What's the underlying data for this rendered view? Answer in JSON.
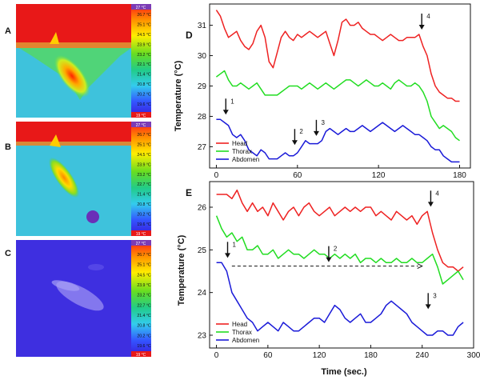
{
  "colors": {
    "head": "#ee2222",
    "thorax": "#22dd22",
    "abdomen": "#1a1ad8"
  },
  "thermal_panels": [
    {
      "label": "A",
      "scale_top": "27 °C",
      "scale_bottom": "19 °C",
      "ticks": [
        "26.7 °C",
        "25.1 °C",
        "24.5 °C",
        "23.9 °C",
        "23.2 °C",
        "22.1 °C",
        "21.4 °C",
        "20.8 °C",
        "20.2 °C",
        "19.6 °C"
      ]
    },
    {
      "label": "B",
      "scale_top": "27 °C",
      "scale_bottom": "19 °C",
      "ticks": [
        "26.7 °C",
        "25.1 °C",
        "24.5 °C",
        "23.9 °C",
        "23.2 °C",
        "22.7 °C",
        "21.4 °C",
        "20.8 °C",
        "20.2 °C",
        "19.6 °C"
      ]
    },
    {
      "label": "C",
      "scale_top": "27 °C",
      "scale_bottom": "19 °C",
      "ticks": [
        "26.7 °C",
        "25.1 °C",
        "24.5 °C",
        "23.9 °C",
        "23.2 °C",
        "22.7 °C",
        "21.4 °C",
        "20.8 °C",
        "20.2 °C",
        "19.6 °C"
      ]
    }
  ],
  "chart_data": [
    {
      "type": "line",
      "panel_label": "D",
      "title": "",
      "xlabel": "",
      "ylabel": "Temperature (°C)",
      "xlim": [
        -5,
        188
      ],
      "ylim": [
        26.3,
        31.7
      ],
      "xticks": [
        0,
        60,
        120,
        180
      ],
      "yticks": [
        27,
        28,
        29,
        30,
        31
      ],
      "legend": [
        "Head",
        "Thorax",
        "Abdomen"
      ],
      "series": [
        {
          "name": "Head",
          "x": [
            0,
            3,
            6,
            9,
            12,
            15,
            18,
            21,
            24,
            27,
            30,
            33,
            36,
            39,
            42,
            45,
            48,
            51,
            54,
            57,
            60,
            63,
            66,
            69,
            72,
            75,
            78,
            81,
            84,
            87,
            90,
            93,
            96,
            99,
            102,
            105,
            108,
            111,
            114,
            117,
            120,
            123,
            126,
            129,
            132,
            135,
            138,
            141,
            144,
            147,
            150,
            153,
            156,
            159,
            162,
            165,
            168,
            171,
            174,
            177,
            180
          ],
          "values": [
            31.5,
            31.3,
            30.9,
            30.6,
            30.7,
            30.8,
            30.5,
            30.3,
            30.2,
            30.4,
            30.8,
            31.0,
            30.6,
            29.8,
            29.6,
            30.1,
            30.6,
            30.8,
            30.6,
            30.5,
            30.7,
            30.6,
            30.7,
            30.8,
            30.7,
            30.6,
            30.7,
            30.8,
            30.4,
            30.0,
            30.5,
            31.1,
            31.2,
            31.0,
            31.0,
            31.1,
            30.9,
            30.8,
            30.7,
            30.7,
            30.6,
            30.5,
            30.6,
            30.7,
            30.6,
            30.5,
            30.5,
            30.6,
            30.6,
            30.6,
            30.7,
            30.3,
            30.0,
            29.4,
            29.0,
            28.8,
            28.7,
            28.6,
            28.6,
            28.5,
            28.5
          ]
        },
        {
          "name": "Thorax",
          "x": [
            0,
            3,
            6,
            9,
            12,
            15,
            18,
            21,
            24,
            27,
            30,
            33,
            36,
            39,
            42,
            45,
            48,
            51,
            54,
            57,
            60,
            63,
            66,
            69,
            72,
            75,
            78,
            81,
            84,
            87,
            90,
            93,
            96,
            99,
            102,
            105,
            108,
            111,
            114,
            117,
            120,
            123,
            126,
            129,
            132,
            135,
            138,
            141,
            144,
            147,
            150,
            153,
            156,
            159,
            162,
            165,
            168,
            171,
            174,
            177,
            180
          ],
          "values": [
            29.3,
            29.4,
            29.5,
            29.2,
            29.0,
            29.0,
            29.1,
            29.0,
            28.9,
            29.0,
            29.1,
            28.9,
            28.7,
            28.7,
            28.7,
            28.7,
            28.8,
            28.9,
            29.0,
            29.0,
            29.0,
            28.9,
            29.0,
            29.1,
            29.0,
            28.9,
            29.0,
            29.1,
            29.0,
            28.9,
            29.0,
            29.1,
            29.2,
            29.2,
            29.1,
            29.0,
            29.1,
            29.2,
            29.1,
            29.0,
            29.0,
            29.1,
            29.0,
            28.9,
            29.1,
            29.2,
            29.1,
            29.0,
            29.0,
            29.1,
            29.0,
            28.8,
            28.5,
            28.0,
            27.8,
            27.6,
            27.7,
            27.6,
            27.5,
            27.3,
            27.2
          ]
        },
        {
          "name": "Abdomen",
          "x": [
            0,
            3,
            6,
            9,
            12,
            15,
            18,
            21,
            24,
            27,
            30,
            33,
            36,
            39,
            42,
            45,
            48,
            51,
            54,
            57,
            60,
            63,
            66,
            69,
            72,
            75,
            78,
            81,
            84,
            87,
            90,
            93,
            96,
            99,
            102,
            105,
            108,
            111,
            114,
            117,
            120,
            123,
            126,
            129,
            132,
            135,
            138,
            141,
            144,
            147,
            150,
            153,
            156,
            159,
            162,
            165,
            168,
            171,
            174,
            177,
            180
          ],
          "values": [
            27.9,
            27.9,
            27.8,
            27.7,
            27.4,
            27.3,
            27.4,
            27.2,
            26.9,
            26.8,
            26.7,
            26.9,
            26.8,
            26.6,
            26.6,
            26.6,
            26.7,
            26.8,
            26.7,
            26.7,
            26.8,
            27.0,
            27.2,
            27.1,
            27.1,
            27.1,
            27.2,
            27.5,
            27.6,
            27.5,
            27.4,
            27.5,
            27.6,
            27.5,
            27.5,
            27.6,
            27.7,
            27.6,
            27.5,
            27.6,
            27.7,
            27.8,
            27.7,
            27.6,
            27.5,
            27.6,
            27.7,
            27.6,
            27.5,
            27.4,
            27.4,
            27.3,
            27.2,
            27.0,
            26.9,
            26.9,
            26.7,
            26.6,
            26.5,
            26.5,
            26.5
          ]
        }
      ],
      "annotations": [
        {
          "text": "1",
          "x": 7,
          "y": 27.9
        },
        {
          "text": "2",
          "x": 58,
          "y": 26.9
        },
        {
          "text": "3",
          "x": 74,
          "y": 27.2
        },
        {
          "text": "4",
          "x": 152,
          "y": 30.7
        }
      ]
    },
    {
      "type": "line",
      "panel_label": "E",
      "title": "",
      "xlabel": "Time (sec.)",
      "ylabel": "Temperature (°C)",
      "xlim": [
        -8,
        300
      ],
      "ylim": [
        22.7,
        26.6
      ],
      "xticks": [
        0,
        60,
        120,
        180,
        240,
        300
      ],
      "yticks": [
        23,
        24,
        25,
        26
      ],
      "legend": [
        "Head",
        "Thorax",
        "Abdomen"
      ],
      "series": [
        {
          "name": "Head",
          "x": [
            0,
            6,
            12,
            18,
            24,
            30,
            36,
            42,
            48,
            54,
            60,
            66,
            72,
            78,
            84,
            90,
            96,
            102,
            108,
            114,
            120,
            126,
            132,
            138,
            144,
            150,
            156,
            162,
            168,
            174,
            180,
            186,
            192,
            198,
            204,
            210,
            216,
            222,
            228,
            234,
            240,
            246,
            252,
            258,
            264,
            270,
            276,
            282,
            288
          ],
          "values": [
            26.3,
            26.3,
            26.3,
            26.2,
            26.4,
            26.1,
            25.9,
            26.1,
            25.9,
            26.0,
            25.8,
            26.1,
            25.9,
            25.7,
            25.9,
            26.0,
            25.8,
            26.0,
            26.1,
            25.9,
            25.8,
            25.9,
            26.0,
            25.8,
            25.9,
            26.0,
            25.9,
            26.0,
            25.9,
            26.0,
            26.0,
            25.8,
            25.9,
            25.8,
            25.7,
            25.9,
            25.8,
            25.7,
            25.8,
            25.6,
            25.8,
            25.9,
            25.4,
            25.0,
            24.7,
            24.6,
            24.6,
            24.5,
            24.6
          ]
        },
        {
          "name": "Thorax",
          "x": [
            0,
            6,
            12,
            18,
            24,
            30,
            36,
            42,
            48,
            54,
            60,
            66,
            72,
            78,
            84,
            90,
            96,
            102,
            108,
            114,
            120,
            126,
            132,
            138,
            144,
            150,
            156,
            162,
            168,
            174,
            180,
            186,
            192,
            198,
            204,
            210,
            216,
            222,
            228,
            234,
            240,
            246,
            252,
            258,
            264,
            270,
            276,
            282,
            288
          ],
          "values": [
            25.8,
            25.5,
            25.3,
            25.4,
            25.2,
            25.3,
            25.0,
            25.0,
            25.1,
            24.9,
            24.9,
            25.0,
            24.8,
            24.9,
            25.0,
            24.9,
            24.9,
            24.8,
            24.9,
            25.0,
            24.9,
            24.9,
            24.8,
            24.9,
            24.8,
            24.9,
            24.8,
            24.9,
            24.7,
            24.8,
            24.8,
            24.7,
            24.8,
            24.7,
            24.7,
            24.8,
            24.7,
            24.7,
            24.8,
            24.7,
            24.7,
            24.8,
            24.9,
            24.6,
            24.2,
            24.3,
            24.4,
            24.5,
            24.3
          ]
        },
        {
          "name": "Abdomen",
          "x": [
            0,
            6,
            12,
            18,
            24,
            30,
            36,
            42,
            48,
            54,
            60,
            66,
            72,
            78,
            84,
            90,
            96,
            102,
            108,
            114,
            120,
            126,
            132,
            138,
            144,
            150,
            156,
            162,
            168,
            174,
            180,
            186,
            192,
            198,
            204,
            210,
            216,
            222,
            228,
            234,
            240,
            246,
            252,
            258,
            264,
            270,
            276,
            282,
            288
          ],
          "values": [
            24.7,
            24.7,
            24.5,
            24.0,
            23.8,
            23.6,
            23.4,
            23.3,
            23.1,
            23.2,
            23.3,
            23.2,
            23.1,
            23.3,
            23.2,
            23.1,
            23.1,
            23.2,
            23.3,
            23.4,
            23.4,
            23.3,
            23.5,
            23.7,
            23.6,
            23.4,
            23.3,
            23.4,
            23.5,
            23.3,
            23.3,
            23.4,
            23.5,
            23.7,
            23.8,
            23.7,
            23.6,
            23.5,
            23.3,
            23.2,
            23.1,
            23.0,
            23.0,
            23.1,
            23.1,
            23.0,
            23.0,
            23.2,
            23.3
          ]
        }
      ],
      "annotations": [
        {
          "text": "1",
          "x": 13,
          "y": 24.7
        },
        {
          "text": "2",
          "x": 131,
          "y": 24.6
        },
        {
          "text": "3",
          "x": 247,
          "y": 23.5
        },
        {
          "text": "4",
          "x": 250,
          "y": 25.9
        }
      ]
    }
  ]
}
